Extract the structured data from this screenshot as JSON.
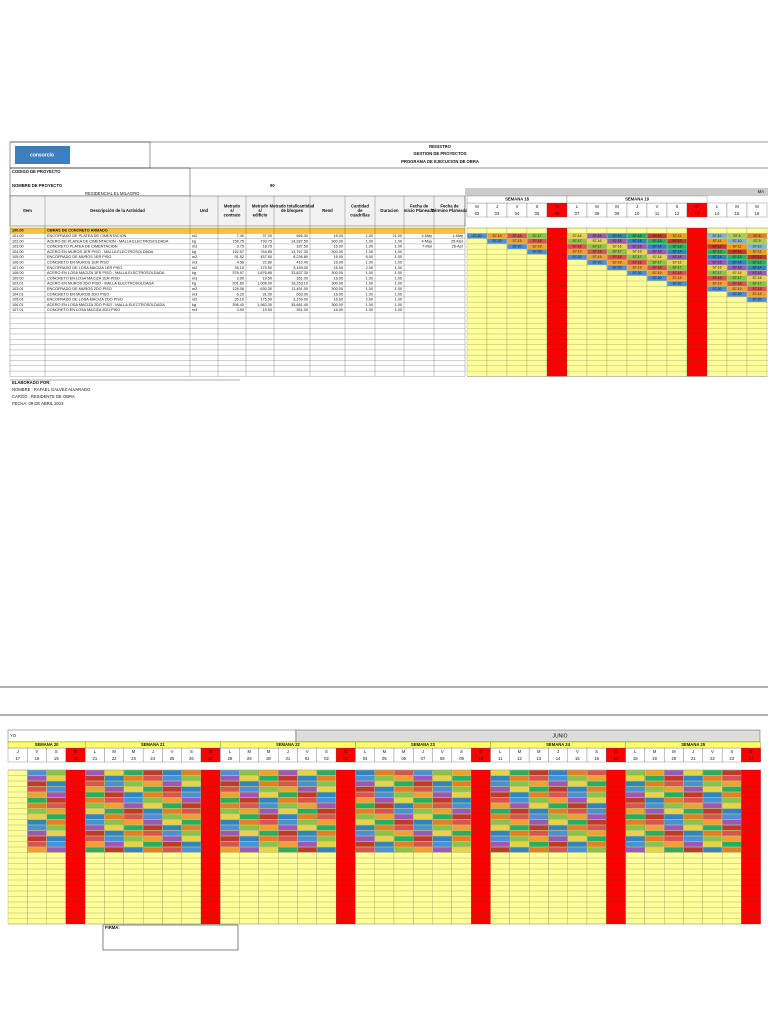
{
  "header": {
    "logo": "consorcio",
    "lines": [
      "REGISTRO",
      "GESTION DE PROYECTOS",
      "PROGRAMA DE EJECUCION DE OBRA"
    ],
    "codigo_label": "CODIGO DE PROYECTO",
    "nombre_label": "NOMBRE DE PROYECTO",
    "number": "90",
    "nombre_value": "RESIDENCIAL EL MILAGRO"
  },
  "table": {
    "columns": [
      "Item",
      "Descripción de la Actividad",
      "Und",
      "Metrado s/ contrato",
      "Metrado s/ edificio",
      "Metrado total/cantidad de bloques",
      "Rend",
      "Cantidad de cuadrillas",
      "Duracion",
      "Fecha de Inicio Planeada",
      "Fecha de Término Planeada"
    ],
    "rows": [
      [
        "100.00",
        "OBRAS DE CONCRETO ARMADO",
        null,
        null,
        null,
        null,
        null,
        null,
        null,
        null,
        null
      ],
      [
        "101.00",
        "ENCOFRADO DE PLATEA DE CIMENTACION",
        "m2",
        "7.40",
        "37.00",
        "666.00",
        "16.00",
        "1.00",
        "21.00",
        "4-May",
        "1-May"
      ],
      [
        "102.00",
        "ACERO DE PLATEA DE CIMENTACION - MALLA ELECTROSOLDADA",
        "kg",
        "158.75",
        "793.75",
        "14,287.50",
        "300.00",
        "1.00",
        "1.00",
        "4-May",
        "25-Mar"
      ],
      [
        "103.00",
        "CONCRETO PLATEA DE CIMENTACION",
        "m3",
        "3.75",
        "18.75",
        "337.50",
        "16.00",
        "1.00",
        "1.00",
        "7-Mar",
        "26-Apr"
      ],
      [
        "104.00",
        "ACERO EN MUROS 1ER PISO - MALLA ELECTROSOLDADA",
        "kg",
        "152.97",
        "764.85",
        "13,767.30",
        "300.00",
        "1.00",
        "1.00",
        null,
        null
      ],
      [
        "105.00",
        "ENCOFRADO DE MUROS 1ER PISO",
        "m2",
        "91.52",
        "457.60",
        "8,236.80",
        "16.00",
        "6.00",
        "1.00",
        null,
        null
      ],
      [
        "106.00",
        "CONCRETO EN MUROS 1ER PISO",
        "m3",
        "4.56",
        "22.80",
        "410.40",
        "16.00",
        "1.00",
        "1.00",
        null,
        null
      ],
      [
        "107.00",
        "ENCOFRADO DE LOSA MACIZA 1ER PISO",
        "m2",
        "35.10",
        "175.50",
        "3,159.00",
        "16.00",
        "2.00",
        "1.00",
        null,
        null
      ],
      [
        "108.00",
        "ACERO EN LOSA MACIZA 1ER PISO - MALLA ELECTROSOLDADA",
        "kg",
        "376.97",
        "1,876.85",
        "33,837.30",
        "300.00",
        "1.00",
        "1.00",
        null,
        null
      ],
      [
        "109.00",
        "CONCRETO EN LOSA MACIZA 1ER PISO",
        "m3",
        "3.90",
        "19.50",
        "351.00",
        "16.00",
        "1.00",
        "1.00",
        null,
        null
      ],
      [
        "102.01",
        "ACERO EN MUROS 2DO PISO - MALLA ELECTROSOLDADA",
        "kg",
        "201.60",
        "1,008.00",
        "18,153.10",
        "300.00",
        "1.00",
        "1.00",
        null,
        null
      ],
      [
        "103.01",
        "ENCOFRADO DE MUROS 2DO PISO",
        "m2",
        "126.06",
        "630.30",
        "11,451.00",
        "300.00",
        "1.00",
        "1.00",
        null,
        null
      ],
      [
        "104.01",
        "CONCRETO EN MUROS 2DO PISO",
        "m3",
        "6.20",
        "31.00",
        "663.00",
        "16.00",
        "1.00",
        "1.00",
        null,
        null
      ],
      [
        "105.01",
        "ENCOFRADO DE LOSA MACIZA 2DO PISO",
        "m2",
        "35.10",
        "175.50",
        "3,159.00",
        "16.00",
        "2.00",
        "1.00",
        null,
        null
      ],
      [
        "106.01",
        "ACERO EN LOSA MACIZA 2DO PISO - MALLA ELECTROSOLDADA",
        "kg",
        "396.40",
        "1,982.30",
        "35,681.40",
        "300.00",
        "1.00",
        "1.00",
        null,
        null
      ],
      [
        "107.01",
        "CONCRETO EN LOSA MACIZA 2DO PISO",
        "m3",
        "3.90",
        "19.50",
        "351.00",
        "16.00",
        "1.00",
        "1.00",
        null,
        null
      ]
    ]
  },
  "gantt_top": {
    "month": "MA",
    "weeks": [
      "SEMANA 18",
      "SEMANA 19"
    ],
    "days": [
      "M",
      "J",
      "V",
      "S",
      "D",
      "L",
      "M",
      "M",
      "J",
      "V",
      "S",
      "D",
      "L",
      "M",
      "M"
    ],
    "dates": [
      "02",
      "03",
      "04",
      "05",
      "06",
      "07",
      "08",
      "09",
      "10",
      "11",
      "12",
      "13",
      "14",
      "15",
      "16"
    ],
    "rows": [
      [
        null,
        null,
        null,
        null,
        null,
        null,
        null,
        null,
        null,
        null,
        null,
        null,
        null,
        null,
        null
      ],
      [
        "S7-20",
        "S7-19",
        "S7-18",
        "S7-17",
        null,
        "S7-16",
        "S7-15",
        "S7-14",
        "S7-13",
        "S7-12",
        "S7-11",
        null,
        "S7-10",
        "S7-9",
        "S7-8"
      ],
      [
        null,
        "S7-20",
        "S7-19",
        "S7-18",
        null,
        "S7-17",
        "S7-16",
        "S7-15",
        "S7-14",
        "S7-13",
        "S7-12",
        null,
        "S7-11",
        "S7-10",
        "S7-9"
      ],
      [
        null,
        null,
        "S7-20",
        "S7-19",
        null,
        "S7-18",
        "S7-17",
        "S7-16",
        "S7-15",
        "S7-14",
        "S7-13",
        null,
        "S7-12",
        "S7-11",
        "S7-10"
      ],
      [
        null,
        null,
        null,
        "S7-20",
        null,
        "S7-19",
        "S7-18",
        "S7-17",
        "S7-16",
        "S7-15",
        "S7-14",
        null,
        "S7-13",
        "S7-12",
        "S7-11"
      ],
      [
        null,
        null,
        null,
        null,
        null,
        "S7-20",
        "S7-19",
        "S7-18",
        "S7-17",
        "S7-16",
        "S7-15",
        null,
        "S7-14",
        "S7-13",
        "S7-12"
      ],
      [
        null,
        null,
        null,
        null,
        null,
        null,
        "S7-20",
        "S7-19",
        "S7-18",
        "S7-17",
        "S7-16",
        null,
        "S7-15",
        "S7-14",
        "S7-13"
      ],
      [
        null,
        null,
        null,
        null,
        null,
        null,
        null,
        "S7-20",
        "S7-19",
        "S7-18",
        "S7-17",
        null,
        "S7-16",
        "S7-15",
        "S7-14"
      ],
      [
        null,
        null,
        null,
        null,
        null,
        null,
        null,
        null,
        "S7-20",
        "S7-19",
        "S7-18",
        null,
        "S7-17",
        "S7-16",
        "S7-15"
      ],
      [
        null,
        null,
        null,
        null,
        null,
        null,
        null,
        null,
        null,
        "S7-20",
        "S7-19",
        null,
        "S7-18",
        "S7-17",
        "S7-16"
      ],
      [
        null,
        null,
        null,
        null,
        null,
        null,
        null,
        null,
        null,
        null,
        "S7-20",
        null,
        "S7-19",
        "S7-18",
        "S7-17"
      ],
      [
        null,
        null,
        null,
        null,
        null,
        null,
        null,
        null,
        null,
        null,
        null,
        null,
        "S7-20",
        "S7-19",
        "S7-18"
      ],
      [
        null,
        null,
        null,
        null,
        null,
        null,
        null,
        null,
        null,
        null,
        null,
        null,
        null,
        "S7-20",
        "S7-19"
      ],
      [
        null,
        null,
        null,
        null,
        null,
        null,
        null,
        null,
        null,
        null,
        null,
        null,
        null,
        null,
        "S7-20"
      ]
    ],
    "sunday_color": "#ff0000",
    "day_color": "#ffff99"
  },
  "code_colors": {
    "S7-20": "#4a8fd8",
    "S7-19": "#f0a030",
    "S7-18": "#d9534f",
    "S7-17": "#8bc34a",
    "S7-16": "#e6d34a",
    "S7-15": "#9b59b6",
    "S7-14": "#2e86c1",
    "S7-13": "#27ae60",
    "S7-12": "#c0392b",
    "S7-11": "#f39c12",
    "S7-10": "#7fb3d5",
    "S7-9": "#a9cc52",
    "S7-8": "#e67e22"
  },
  "footer": {
    "title": "ELABORADO POR:",
    "lines": [
      "NOMBRE : RAFAEL GALVEZ ALVARADO",
      "CARGO : RESIDENTE DE OBRA",
      "FECHA: 09 DE ABRIL 2013"
    ]
  },
  "gantt_bottom": {
    "months": [
      "YO",
      "JUNIO"
    ],
    "weeks": [
      "SEMANA 20",
      "SEMANA 21",
      "SEMANA 22",
      "SEMANA 23",
      "SEMANA 24",
      "SEMANA 25"
    ],
    "days": [
      "J",
      "V",
      "S",
      "D",
      "L",
      "M",
      "M",
      "J",
      "V",
      "S",
      "D",
      "L",
      "M",
      "M",
      "J",
      "V",
      "S",
      "D",
      "L",
      "M",
      "M",
      "J",
      "V",
      "S",
      "D",
      "L",
      "M",
      "M",
      "J",
      "V",
      "S",
      "D",
      "L",
      "M",
      "M",
      "J",
      "V",
      "S",
      "D"
    ],
    "dates": [
      "17",
      "18",
      "19",
      "20",
      "21",
      "22",
      "23",
      "24",
      "25",
      "26",
      "27",
      "28",
      "29",
      "30",
      "31",
      "01",
      "02",
      "03",
      "04",
      "05",
      "06",
      "07",
      "08",
      "09",
      "10",
      "11",
      "12",
      "13",
      "14",
      "15",
      "16",
      "17",
      "18",
      "19",
      "20",
      "21",
      "22",
      "23",
      "24"
    ]
  },
  "signature": "FIRMA:"
}
